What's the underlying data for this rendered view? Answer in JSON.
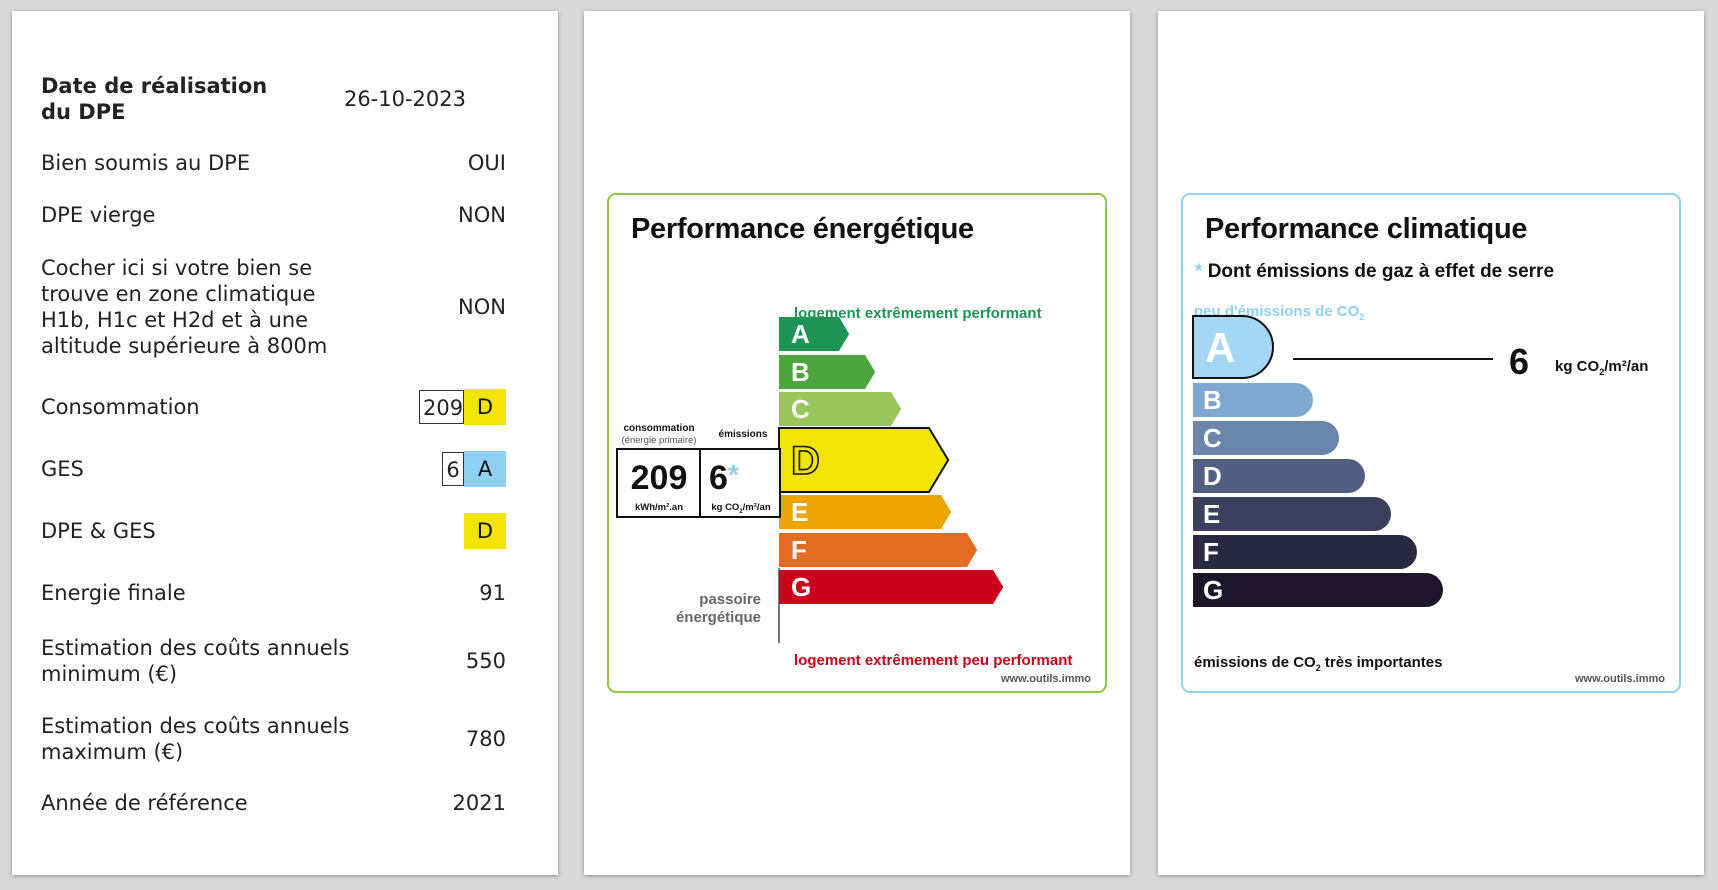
{
  "table": {
    "rows": [
      {
        "label": "Date de réalisation du DPE",
        "value": "26-10-2023"
      },
      {
        "label": "Bien soumis au DPE",
        "value": "OUI"
      },
      {
        "label": "DPE vierge",
        "value": "NON"
      },
      {
        "label": "Cocher ici si votre bien se trouve en zone climatique H1b, H1c et H2d et à une altitude supérieure à 800m",
        "value": "NON"
      },
      {
        "label": "Consommation",
        "value": "209",
        "class": "D"
      },
      {
        "label": "GES",
        "value": "6",
        "class": "A"
      },
      {
        "label": "DPE & GES",
        "class": "D"
      },
      {
        "label": "Energie finale",
        "value": "91"
      },
      {
        "label": "Estimation des coûts annuels minimum (€)",
        "value": "550"
      },
      {
        "label": "Estimation des coûts annuels maximum (€)",
        "value": "780"
      },
      {
        "label": "Année de référence",
        "value": "2021"
      }
    ]
  },
  "energy_label": {
    "title": "Performance énergétique",
    "top_caption": "logement extrêmement performant",
    "bottom_caption": "logement extrêmement peu performant",
    "passoire_line1": "passoire",
    "passoire_line2": "énergétique",
    "consumption_header": "consommation",
    "consumption_sub": "(énergie primaire)",
    "emissions_header": "émissions",
    "consumption_value": "209",
    "consumption_unit": "kWh/m².an",
    "emissions_value": "6",
    "emissions_star": "*",
    "emissions_unit_a": "kg CO",
    "emissions_unit_sub": "2",
    "emissions_unit_b": "/m²/an",
    "classes": [
      "A",
      "B",
      "C",
      "D",
      "E",
      "F",
      "G"
    ],
    "class_colors": [
      "#1d9454",
      "#4ca53e",
      "#9ac45c",
      "#f0e400",
      "#eca500",
      "#e36b22",
      "#cc001b"
    ],
    "active_class": "D",
    "site": "www.outils.immo"
  },
  "climate_label": {
    "title": "Performance climatique",
    "star": "*",
    "subtitle": "Dont émissions de gaz à effet de serre",
    "top_caption_a": "peu d'émissions de CO",
    "top_caption_sub": "2",
    "bottom_caption_a": "émissions de CO",
    "bottom_caption_sub": "2",
    "bottom_caption_b": " très importantes",
    "value": "6",
    "unit_a": "kg CO",
    "unit_sub": "2",
    "unit_b": "/m²/an",
    "classes": [
      "A",
      "B",
      "C",
      "D",
      "E",
      "F",
      "G"
    ],
    "class_colors": [
      "#a4d7f5",
      "#7ea8cf",
      "#6a85aa",
      "#525f82",
      "#3e3f5f",
      "#2b2842",
      "#1b1629"
    ],
    "active_class": "A",
    "site": "www.outils.immo"
  },
  "colors": {
    "class_d_yellow": "#f0e400",
    "class_a_blue": "#8fd0f2",
    "energy_border": "#8dc63f",
    "climate_border": "#92d0f1"
  }
}
